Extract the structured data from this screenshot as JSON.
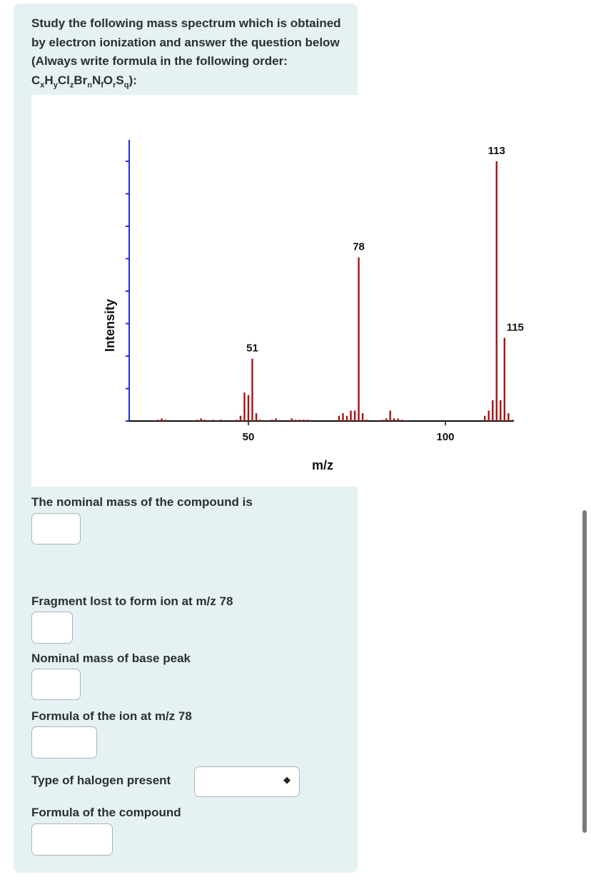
{
  "question": {
    "intro_main": "Study the following mass spectrum which is obtained by electron ionization and answer the question below (Always write formula in the following order: ",
    "formula_parts": [
      {
        "t": "C"
      },
      {
        "s": "x"
      },
      {
        "t": "H"
      },
      {
        "s": "y"
      },
      {
        "t": "Cl"
      },
      {
        "s": "z"
      },
      {
        "t": "Br"
      },
      {
        "s": "n"
      },
      {
        "t": "N"
      },
      {
        "s": "f"
      },
      {
        "t": "O"
      },
      {
        "s": "r"
      },
      {
        "t": "S"
      },
      {
        "s": "q"
      }
    ],
    "intro_end": "):"
  },
  "chart_data": {
    "type": "bar",
    "title": "",
    "xlabel": "m/z",
    "ylabel": "Intensity",
    "xlim": [
      26,
      117
    ],
    "ylim": [
      0,
      100
    ],
    "x_ticks": [
      50,
      100
    ],
    "labeled_peaks": [
      "51",
      "78",
      "113",
      "115"
    ],
    "peaks": [
      {
        "mz": 27,
        "intensity": 0.5
      },
      {
        "mz": 28,
        "intensity": 1
      },
      {
        "mz": 29,
        "intensity": 0.5
      },
      {
        "mz": 37,
        "intensity": 0.5
      },
      {
        "mz": 38,
        "intensity": 1
      },
      {
        "mz": 39,
        "intensity": 0.5
      },
      {
        "mz": 41,
        "intensity": 0.5
      },
      {
        "mz": 43,
        "intensity": 0.5
      },
      {
        "mz": 47,
        "intensity": 0.5
      },
      {
        "mz": 48,
        "intensity": 2
      },
      {
        "mz": 49,
        "intensity": 11
      },
      {
        "mz": 50,
        "intensity": 10
      },
      {
        "mz": 51,
        "intensity": 24
      },
      {
        "mz": 52,
        "intensity": 3
      },
      {
        "mz": 53,
        "intensity": 0.5
      },
      {
        "mz": 56,
        "intensity": 0.5
      },
      {
        "mz": 57,
        "intensity": 1
      },
      {
        "mz": 61,
        "intensity": 1
      },
      {
        "mz": 62,
        "intensity": 0.5
      },
      {
        "mz": 63,
        "intensity": 0.5
      },
      {
        "mz": 64,
        "intensity": 0.5
      },
      {
        "mz": 65,
        "intensity": 0.5
      },
      {
        "mz": 73,
        "intensity": 2
      },
      {
        "mz": 74,
        "intensity": 3
      },
      {
        "mz": 75,
        "intensity": 2
      },
      {
        "mz": 76,
        "intensity": 4
      },
      {
        "mz": 77,
        "intensity": 4
      },
      {
        "mz": 78,
        "intensity": 63
      },
      {
        "mz": 79,
        "intensity": 3
      },
      {
        "mz": 80,
        "intensity": 0.5
      },
      {
        "mz": 84,
        "intensity": 0.5
      },
      {
        "mz": 85,
        "intensity": 1
      },
      {
        "mz": 86,
        "intensity": 4
      },
      {
        "mz": 87,
        "intensity": 1
      },
      {
        "mz": 88,
        "intensity": 1
      },
      {
        "mz": 89,
        "intensity": 0.5
      },
      {
        "mz": 110,
        "intensity": 2
      },
      {
        "mz": 111,
        "intensity": 4
      },
      {
        "mz": 112,
        "intensity": 8
      },
      {
        "mz": 113,
        "intensity": 100
      },
      {
        "mz": 114,
        "intensity": 8
      },
      {
        "mz": 115,
        "intensity": 32
      },
      {
        "mz": 116,
        "intensity": 3
      },
      {
        "mz": 117,
        "intensity": 0.5
      }
    ]
  },
  "labels": {
    "nominal_mass": "The nominal mass of the compound is",
    "fragment_lost": "Fragment lost to form ion at m/z 78",
    "base_peak": "Nominal mass of base peak",
    "formula_ion": "Formula of the ion  at m/z 78",
    "halogen": "Type of halogen present",
    "formula_compound": "Formula of the compound"
  },
  "inputs": {
    "nominal_mass": "",
    "fragment_lost": "",
    "base_peak": "",
    "formula_ion": "",
    "halogen_selected": "",
    "formula_compound": ""
  },
  "icons": {
    "select_arrow": "up-down-chevron-icon"
  },
  "colors": {
    "card_bg": "#e6f1f3",
    "axis": "#1f2ddb",
    "peak": "#a31515"
  }
}
